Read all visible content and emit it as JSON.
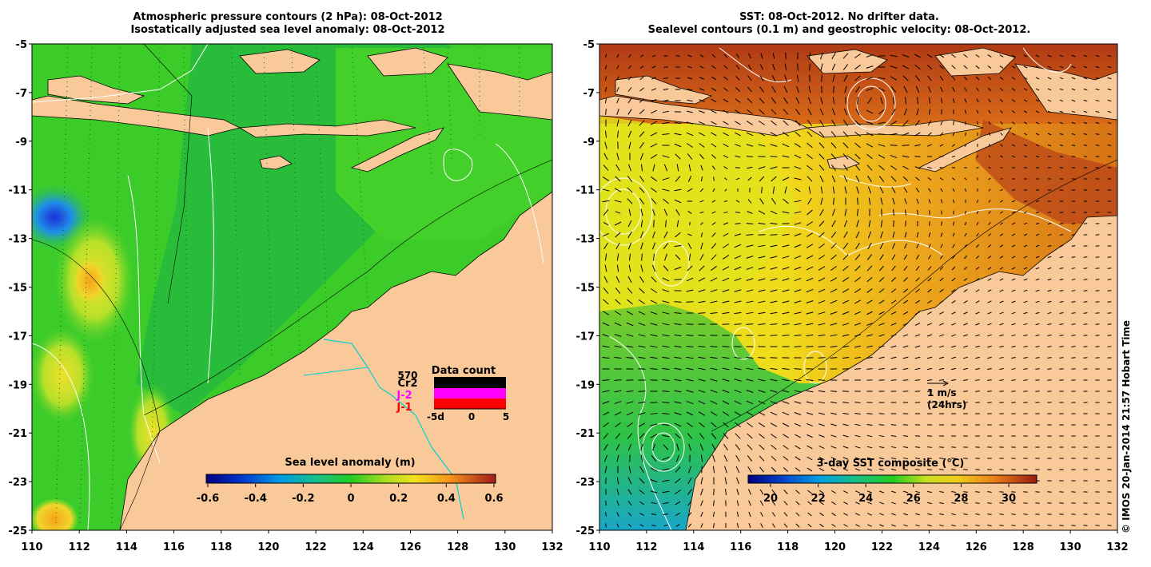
{
  "left_panel": {
    "title_line1": "Atmospheric pressure contours (2 hPa): 08-Oct-2012",
    "title_line2": "Isostatically adjusted sea level anomaly: 08-Oct-2012",
    "y_ticks": [
      "-5",
      "-7",
      "-9",
      "-11",
      "-13",
      "-15",
      "-17",
      "-19",
      "-21",
      "-23",
      "-25"
    ],
    "x_ticks": [
      "110",
      "112",
      "114",
      "116",
      "118",
      "120",
      "122",
      "124",
      "126",
      "128",
      "130",
      "132"
    ],
    "colorbar": {
      "label": "Sea level anomaly (m)",
      "ticks": [
        "-0.6",
        "-0.4",
        "-0.2",
        "0",
        "0.2",
        "0.4",
        "0.6"
      ]
    },
    "data_count": {
      "title": "Data count",
      "count_value": "570",
      "satellites": [
        {
          "name": "Cr2",
          "color": "#000000"
        },
        {
          "name": "J-2",
          "color": "#ff00ff"
        },
        {
          "name": "J-1",
          "color": "#ff0000"
        }
      ],
      "x_ticks": [
        "-5d",
        "0",
        "5"
      ]
    }
  },
  "right_panel": {
    "title_line1": "SST: 08-Oct-2012. No drifter data.",
    "title_line2": "Sealevel contours (0.1 m) and geostrophic velocity: 08-Oct-2012.",
    "y_ticks": [
      "-5",
      "-7",
      "-9",
      "-11",
      "-13",
      "-15",
      "-17",
      "-19",
      "-21",
      "-23",
      "-25"
    ],
    "x_ticks": [
      "110",
      "112",
      "114",
      "116",
      "118",
      "120",
      "122",
      "124",
      "126",
      "128",
      "130",
      "132"
    ],
    "velocity_scale": {
      "label": "1 m/s",
      "sublabel": "(24hrs)"
    },
    "colorbar": {
      "label": "3-day SST composite (°C)",
      "ticks": [
        "20",
        "22",
        "24",
        "26",
        "28",
        "30"
      ]
    }
  },
  "copyright": "© IMOS 20-Jan-2014 21:57 Hobart Time",
  "colors": {
    "land": "#f9c99a",
    "coast_line": "#000000",
    "contour_white": "#ffffff",
    "bathy_cyan": "#00d0d0"
  }
}
